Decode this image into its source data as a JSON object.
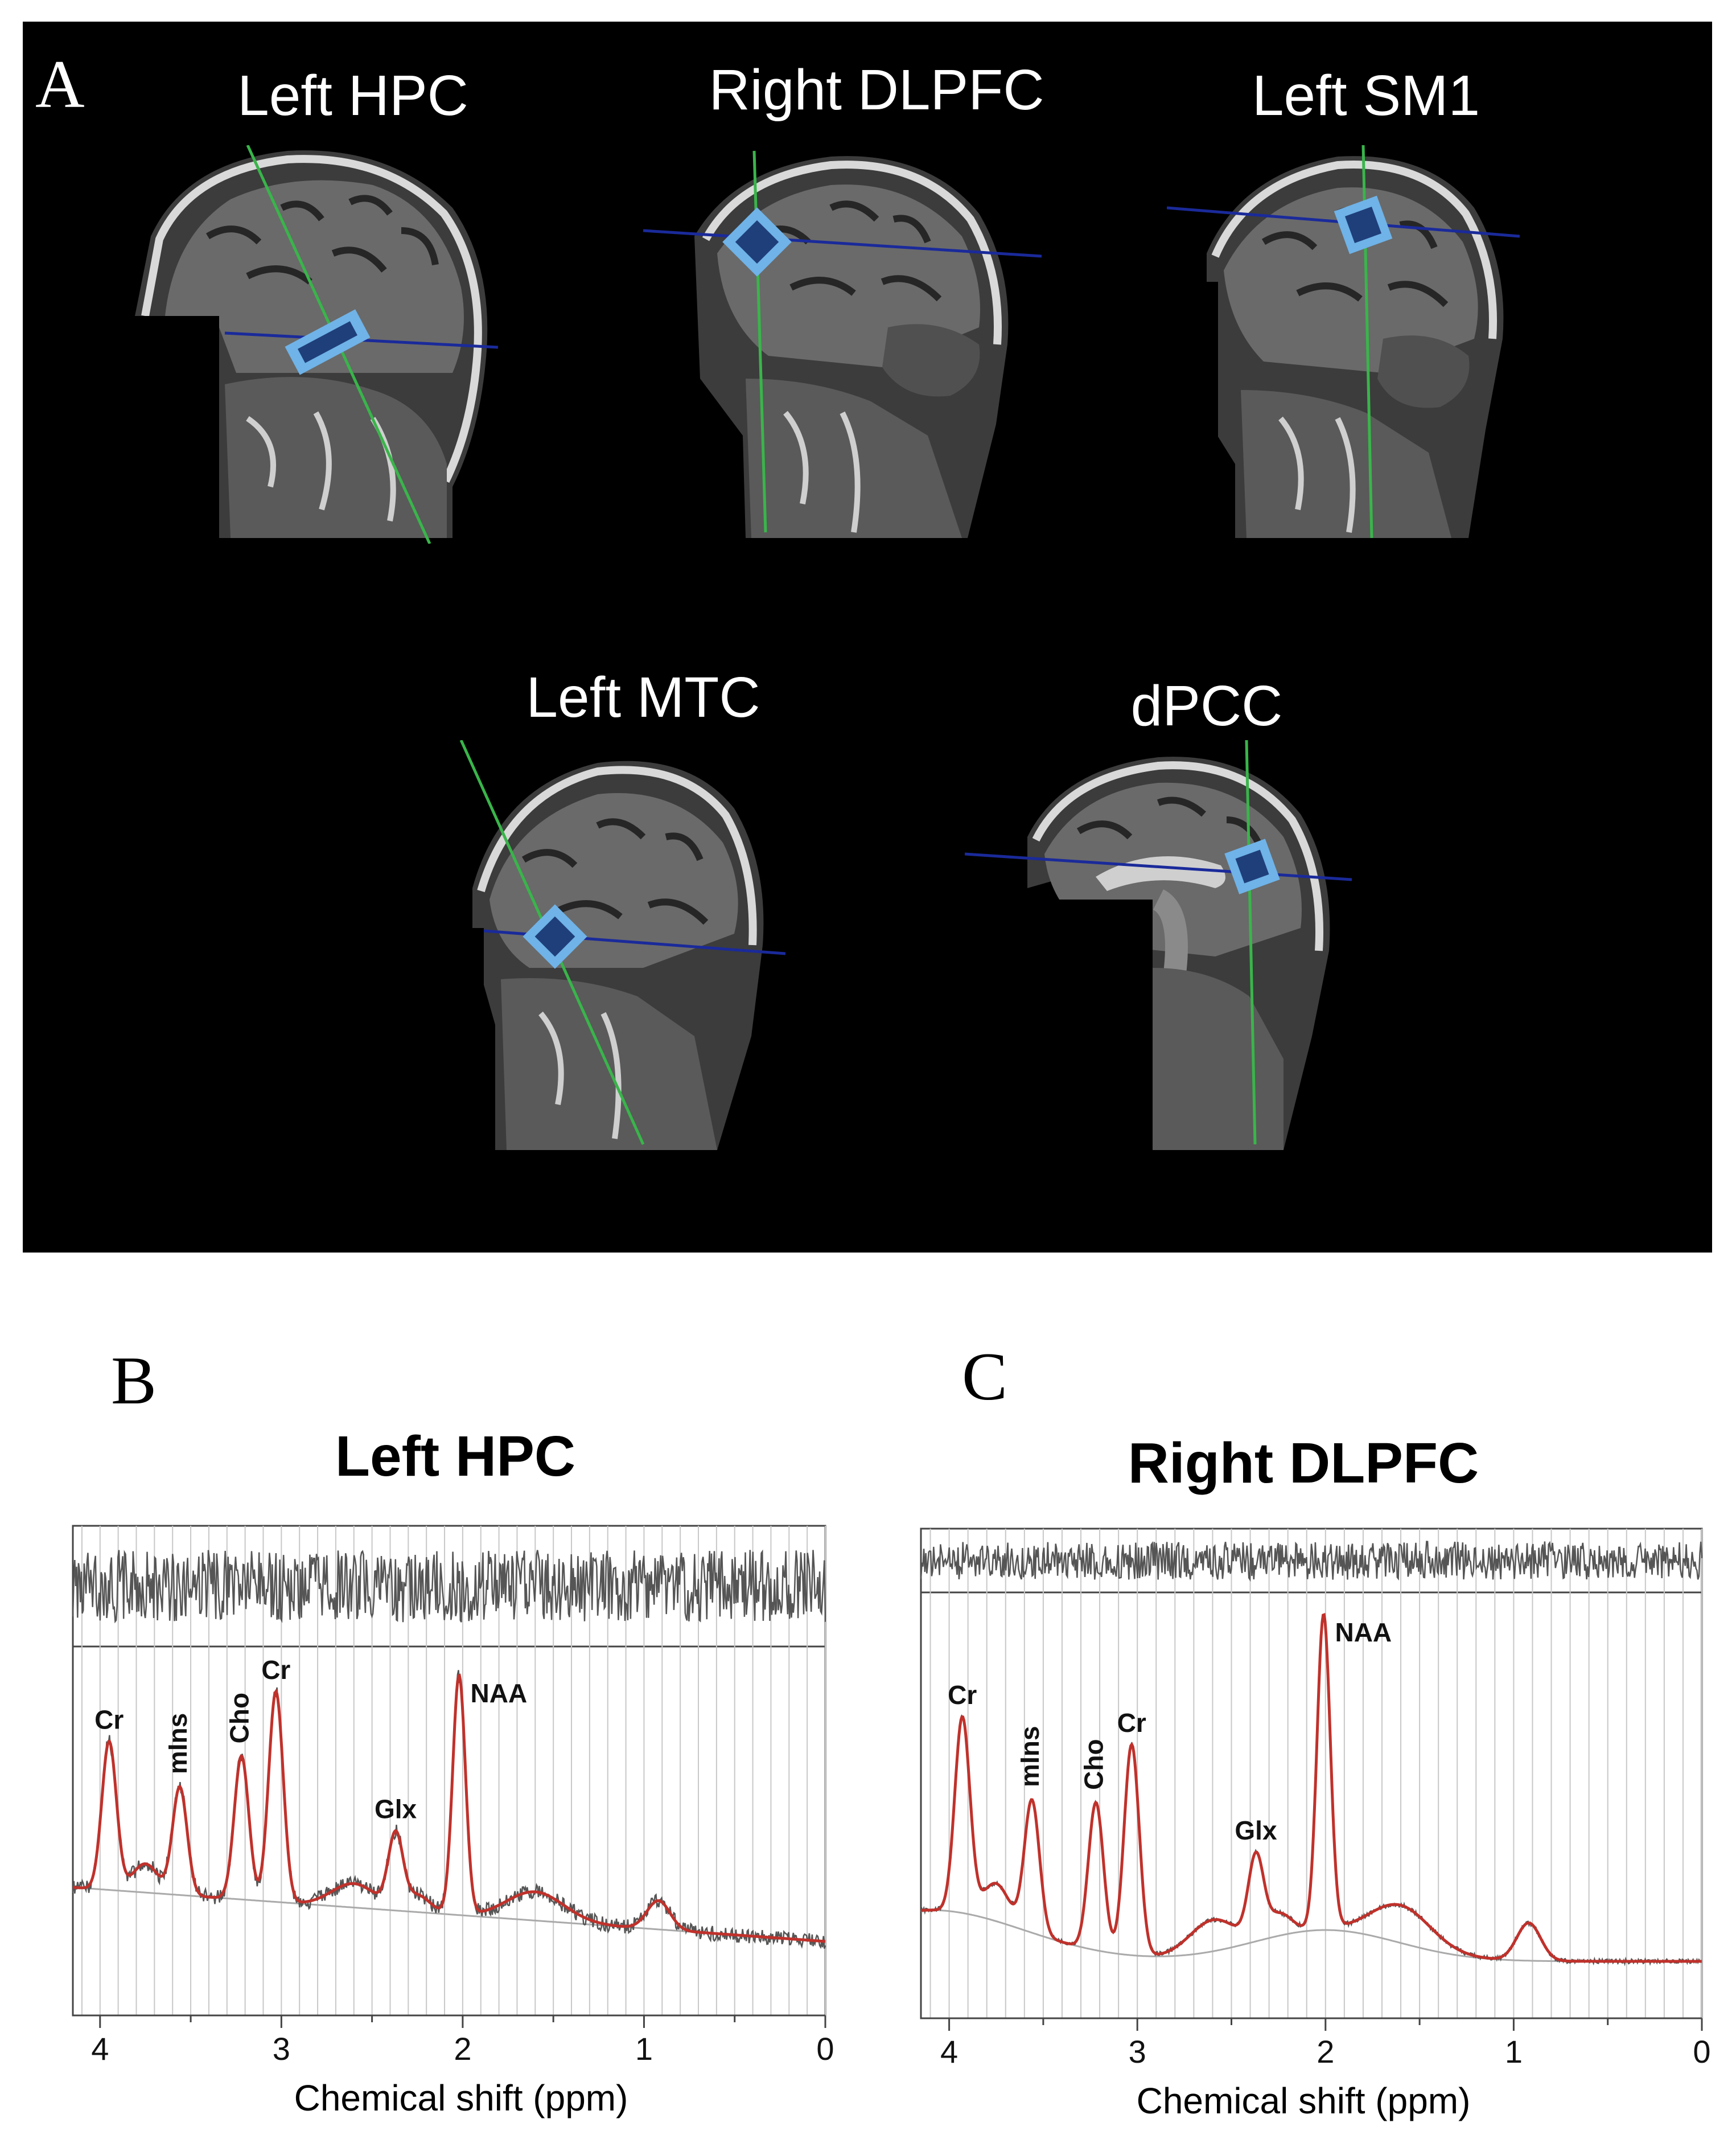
{
  "figure": {
    "panel_a": {
      "letter": "A",
      "scans": [
        {
          "label": "Left HPC",
          "voxel": "rect"
        },
        {
          "label": "Right DLPFC",
          "voxel": "diamond"
        },
        {
          "label": "Left SM1",
          "voxel": "square"
        },
        {
          "label": "Left MTC",
          "voxel": "diamond"
        },
        {
          "label": "dPCC",
          "voxel": "square"
        }
      ]
    },
    "panel_b": {
      "letter": "B",
      "title": "Left HPC"
    },
    "panel_c": {
      "letter": "C",
      "title": "Right DLPFC"
    },
    "colors": {
      "fit": "#c0312b",
      "data": "#555555",
      "baseline": "#aaaaaa",
      "voxel": "#6fb3e8",
      "voxel_inner": "#1f3f7a",
      "line_green": "#39b54a",
      "line_blue": "#1a2a9a"
    }
  },
  "chart_data": [
    {
      "type": "line",
      "title": "Left HPC",
      "xlabel": "Chemical shift (ppm)",
      "ylabel": "",
      "x_reversed": true,
      "xlim": [
        4.15,
        0
      ],
      "x_ticks": [
        "4",
        "3",
        "2",
        "1",
        "0"
      ],
      "peaks": [
        {
          "label": "Cr",
          "ppm": 3.95,
          "height": 0.62
        },
        {
          "label": "mIns",
          "ppm": 3.56,
          "height": 0.45
        },
        {
          "label": "Cho",
          "ppm": 3.22,
          "height": 0.6
        },
        {
          "label": "Cr",
          "ppm": 3.03,
          "height": 0.88
        },
        {
          "label": "Glx",
          "ppm": 2.37,
          "height": 0.3
        },
        {
          "label": "NAA",
          "ppm": 2.02,
          "height": 1.0
        }
      ]
    },
    {
      "type": "line",
      "title": "Right DLPFC",
      "xlabel": "Chemical shift (ppm)",
      "ylabel": "",
      "x_reversed": true,
      "xlim": [
        4.15,
        0
      ],
      "x_ticks": [
        "4",
        "3",
        "2",
        "1",
        "0"
      ],
      "peaks": [
        {
          "label": "Cr",
          "ppm": 3.93,
          "height": 0.62
        },
        {
          "label": "mIns",
          "ppm": 3.56,
          "height": 0.42
        },
        {
          "label": "Cho",
          "ppm": 3.22,
          "height": 0.47
        },
        {
          "label": "Cr",
          "ppm": 3.03,
          "height": 0.67
        },
        {
          "label": "Glx",
          "ppm": 2.37,
          "height": 0.25
        },
        {
          "label": "NAA",
          "ppm": 2.01,
          "height": 1.0
        }
      ]
    }
  ]
}
